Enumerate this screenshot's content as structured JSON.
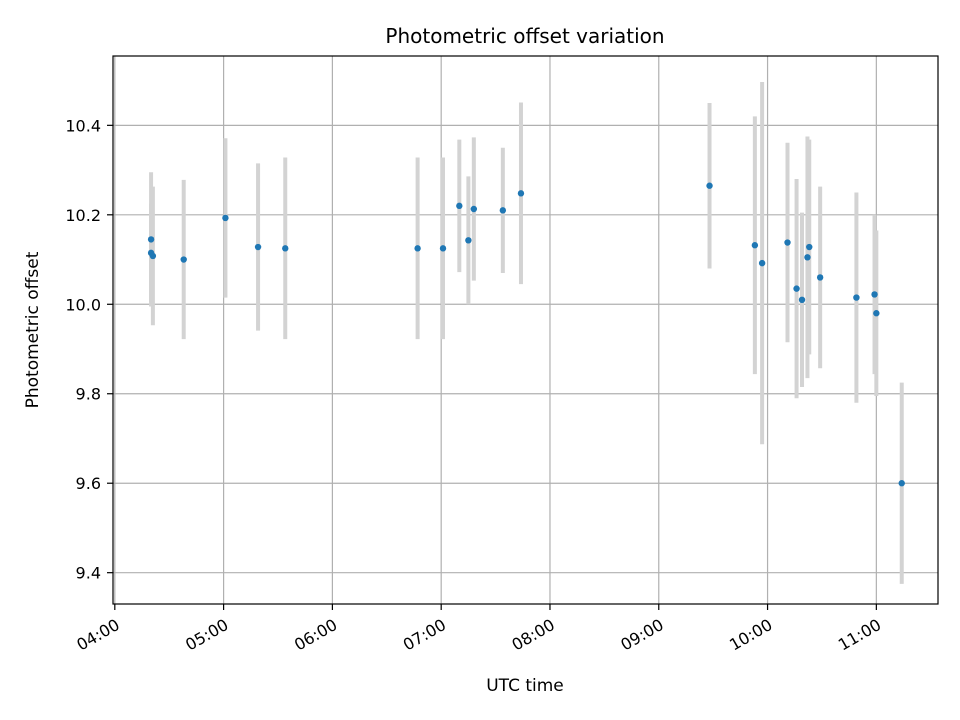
{
  "chart_data": {
    "type": "scatter",
    "title": "Photometric offset variation",
    "xlabel": "UTC time",
    "ylabel": "Photometric offset",
    "x_ticks": [
      "04:00",
      "05:00",
      "06:00",
      "07:00",
      "08:00",
      "09:00",
      "10:00",
      "11:00"
    ],
    "y_ticks": [
      "9.4",
      "9.6",
      "9.8",
      "10.0",
      "10.2",
      "10.4"
    ],
    "xlim": [
      "03:59",
      "11:34"
    ],
    "ylim": [
      9.33,
      10.555
    ],
    "grid": true,
    "marker_color": "#1f77b4",
    "errorbar_color": "#d3d3d3",
    "points": [
      {
        "x": "04:20",
        "y": 10.145,
        "yerr": 0.15
      },
      {
        "x": "04:20",
        "y": 10.115,
        "yerr": 0.11
      },
      {
        "x": "04:21",
        "y": 10.108,
        "yerr": 0.155
      },
      {
        "x": "04:38",
        "y": 10.1,
        "yerr": 0.178
      },
      {
        "x": "05:01",
        "y": 10.193,
        "yerr": 0.178
      },
      {
        "x": "05:19",
        "y": 10.128,
        "yerr": 0.187
      },
      {
        "x": "05:34",
        "y": 10.125,
        "yerr": 0.203
      },
      {
        "x": "06:47",
        "y": 10.125,
        "yerr": 0.203
      },
      {
        "x": "07:01",
        "y": 10.125,
        "yerr": 0.203
      },
      {
        "x": "07:10",
        "y": 10.22,
        "yerr": 0.148
      },
      {
        "x": "07:15",
        "y": 10.143,
        "yerr": 0.143
      },
      {
        "x": "07:18",
        "y": 10.213,
        "yerr": 0.16
      },
      {
        "x": "07:34",
        "y": 10.21,
        "yerr": 0.14
      },
      {
        "x": "07:44",
        "y": 10.248,
        "yerr": 0.203
      },
      {
        "x": "09:28",
        "y": 10.265,
        "yerr": 0.185
      },
      {
        "x": "09:53",
        "y": 10.132,
        "yerr": 0.288
      },
      {
        "x": "09:57",
        "y": 10.092,
        "yerr": 0.405
      },
      {
        "x": "10:11",
        "y": 10.138,
        "yerr": 0.223
      },
      {
        "x": "10:16",
        "y": 10.035,
        "yerr": 0.245
      },
      {
        "x": "10:19",
        "y": 10.01,
        "yerr": 0.195
      },
      {
        "x": "10:22",
        "y": 10.105,
        "yerr": 0.27
      },
      {
        "x": "10:23",
        "y": 10.128,
        "yerr": 0.24
      },
      {
        "x": "10:29",
        "y": 10.06,
        "yerr": 0.203
      },
      {
        "x": "10:49",
        "y": 10.015,
        "yerr": 0.235
      },
      {
        "x": "10:59",
        "y": 10.022,
        "yerr": 0.178
      },
      {
        "x": "11:00",
        "y": 9.98,
        "yerr": 0.185
      },
      {
        "x": "11:14",
        "y": 9.6,
        "yerr": 0.225
      }
    ]
  }
}
